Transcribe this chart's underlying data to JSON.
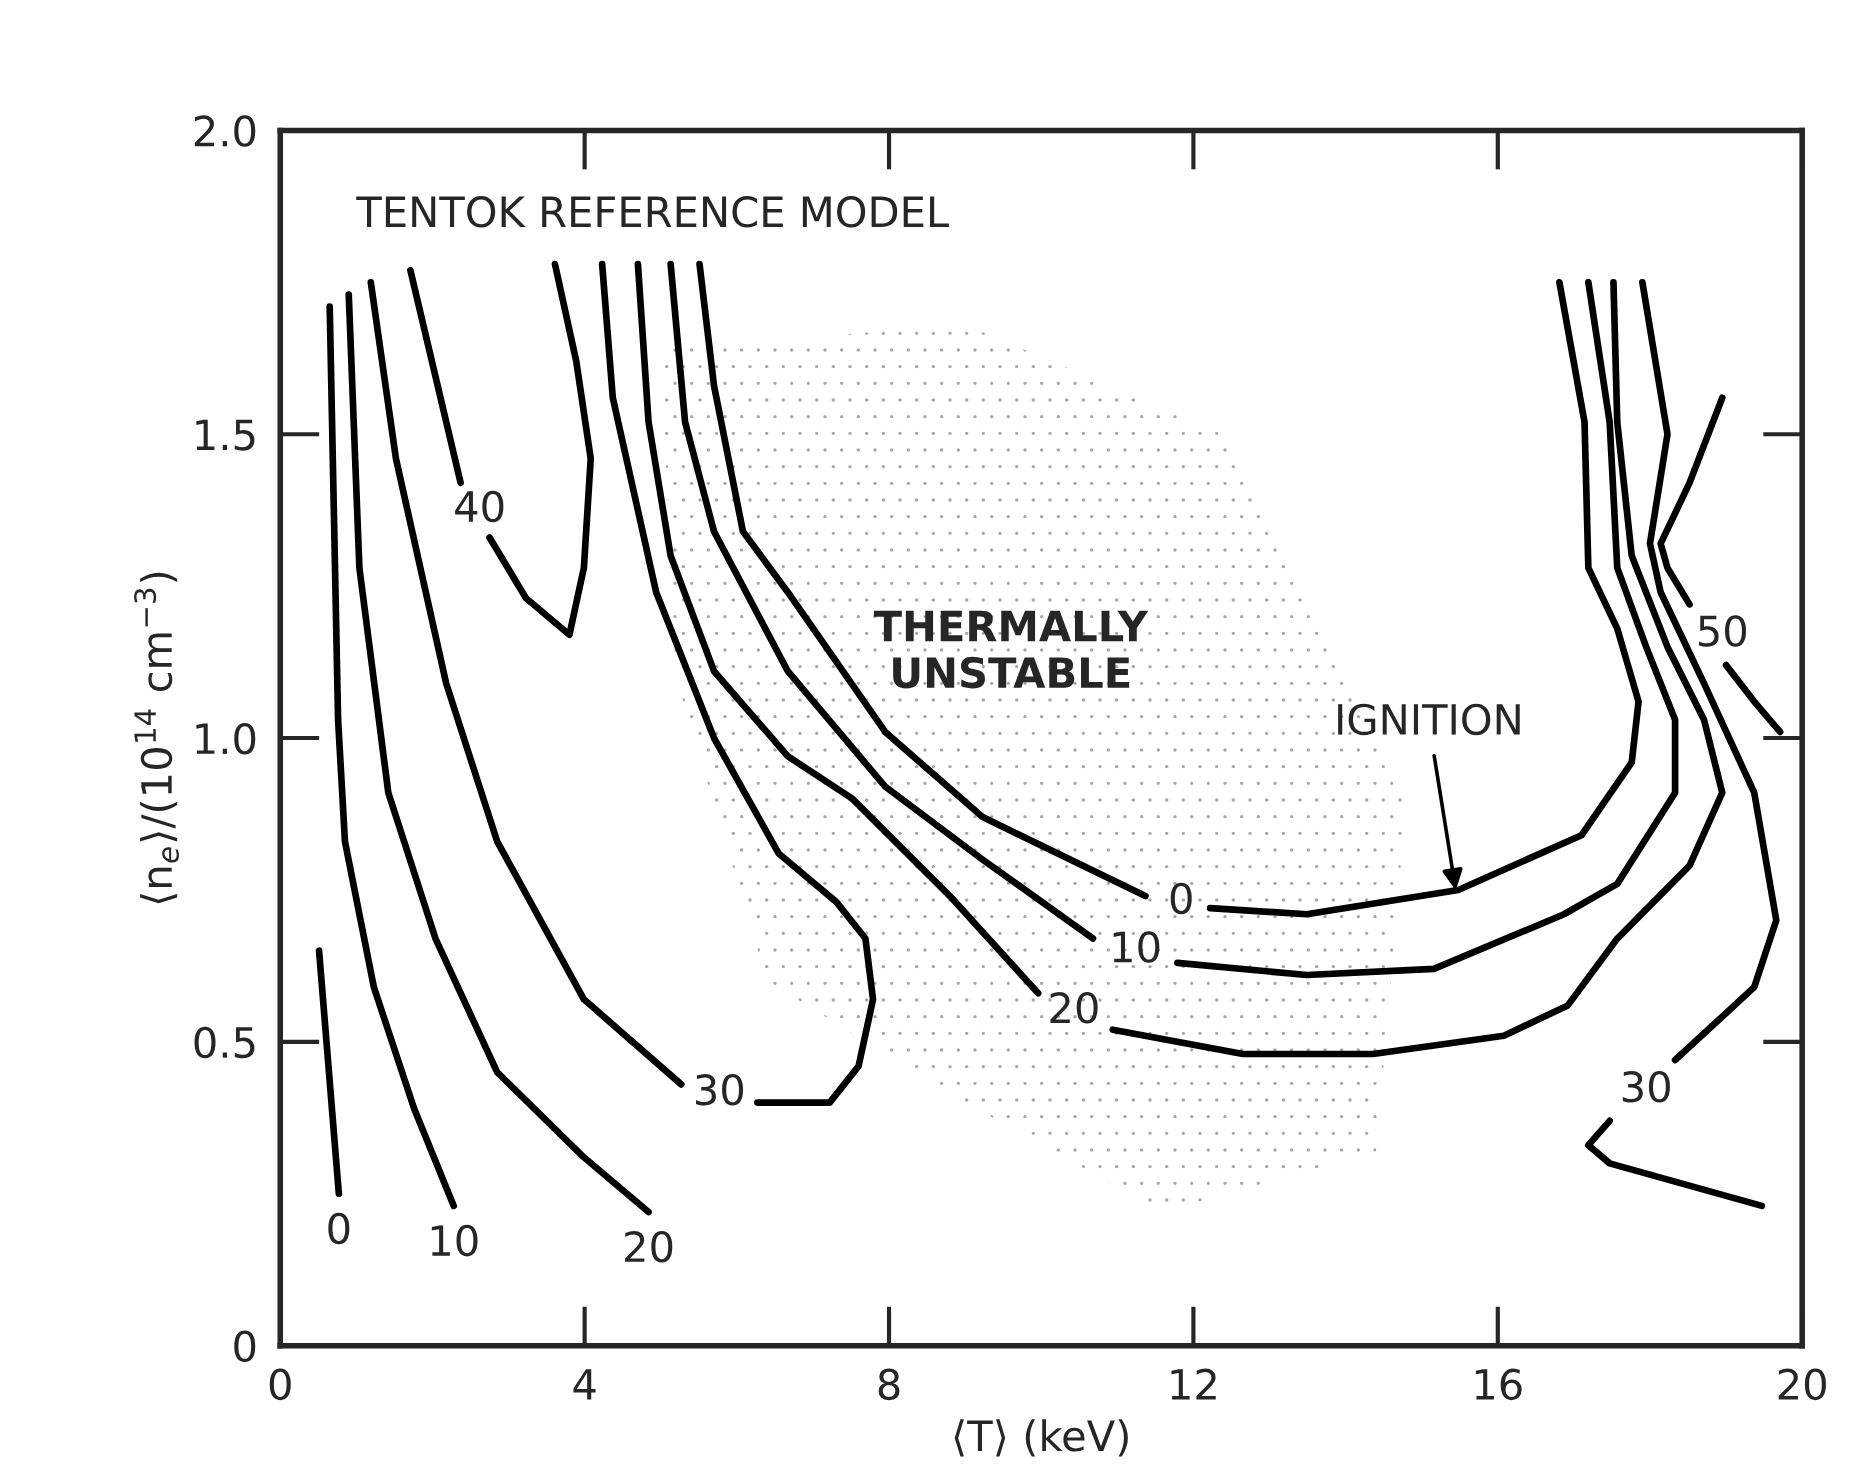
{
  "chart_data": {
    "type": "line",
    "title": "TENTOK REFERENCE MODEL",
    "xlabel": "⟨T⟩ (keV)",
    "ylabel": "⟨n$_{e}$⟩/(10$^{14}$ cm$^{−3}$)",
    "xlim": [
      0,
      20
    ],
    "ylim": [
      0,
      2.0
    ],
    "xticks": [
      0,
      4,
      8,
      12,
      16,
      20
    ],
    "yticks": [
      {
        "value": 0,
        "label": "0"
      },
      {
        "value": 0.5,
        "label": "0.5"
      },
      {
        "value": 1.0,
        "label": "1.0"
      },
      {
        "value": 1.5,
        "label": "1.5"
      },
      {
        "value": 2.0,
        "label": "2.0"
      }
    ],
    "grid": false,
    "legend": false,
    "marker": "none",
    "line_style": "solid",
    "series": [
      {
        "name": "0",
        "color": "#000000",
        "x": [
          0.51,
          0.77
        ],
        "values": [
          0.65,
          0.25
        ]
      },
      {
        "name": "10",
        "color": "#000000",
        "x": [
          0.65,
          0.76,
          0.85,
          1.23,
          1.76,
          2.28
        ],
        "values": [
          1.71,
          1.03,
          0.83,
          0.59,
          0.39,
          0.23
        ]
      },
      {
        "name": "20",
        "color": "#000000",
        "x": [
          0.9,
          1.04,
          1.42,
          2.04,
          2.85,
          3.99,
          4.84
        ],
        "values": [
          1.73,
          1.28,
          0.91,
          0.67,
          0.45,
          0.31,
          0.22
        ]
      },
      {
        "name": "30",
        "color": "#000000",
        "x": [
          1.19,
          1.52,
          2.18,
          2.85,
          3.99,
          5.27,
          5.77,
          6.27,
          7.22,
          7.6,
          7.79,
          7.69,
          7.31,
          6.55,
          5.7,
          4.94,
          4.37,
          4.23
        ],
        "values": [
          1.75,
          1.46,
          1.09,
          0.83,
          0.57,
          0.43,
          null,
          0.4,
          0.4,
          0.46,
          0.57,
          0.67,
          0.73,
          0.81,
          1.0,
          1.24,
          1.56,
          1.78
        ]
      },
      {
        "name": "40",
        "color": "#000000",
        "x": [
          1.71,
          2.37,
          2.62,
          2.75,
          3.23,
          3.8,
          3.99,
          4.08,
          3.89,
          3.61
        ],
        "values": [
          1.77,
          1.42,
          null,
          1.33,
          1.23,
          1.17,
          1.28,
          1.46,
          1.62,
          1.78
        ]
      },
      {
        "name": "0",
        "color": "#000000",
        "x": [
          5.51,
          5.7,
          6.08,
          6.67,
          7.95,
          9.23,
          11.37,
          11.84,
          12.22,
          13.49,
          15.48,
          17.1,
          17.76,
          17.85,
          17.57,
          17.19,
          17.14,
          16.81
        ],
        "values": [
          1.78,
          1.58,
          1.34,
          1.24,
          1.01,
          0.87,
          0.74,
          null,
          0.72,
          0.71,
          0.75,
          0.84,
          0.96,
          1.06,
          1.18,
          1.28,
          1.52,
          1.75
        ]
      },
      {
        "name": "10",
        "color": "#000000",
        "x": [
          5.13,
          5.32,
          5.7,
          6.67,
          7.95,
          9.23,
          10.68,
          11.24,
          11.79,
          13.49,
          15.16,
          16.87,
          17.57,
          18.33,
          18.33,
          17.95,
          17.57,
          17.47,
          17.19
        ],
        "values": [
          1.78,
          1.52,
          1.34,
          1.11,
          0.92,
          0.8,
          0.67,
          null,
          0.63,
          0.61,
          0.62,
          0.71,
          0.76,
          0.91,
          1.03,
          1.15,
          1.28,
          1.52,
          1.75
        ]
      },
      {
        "name": "20",
        "color": "#000000",
        "x": [
          4.7,
          4.84,
          5.13,
          5.7,
          6.67,
          7.52,
          8.8,
          9.96,
          10.43,
          10.94,
          12.65,
          14.36,
          16.08,
          16.92,
          17.57,
          18.52,
          18.95,
          18.71,
          18.23,
          17.76,
          17.57,
          17.52
        ],
        "values": [
          1.78,
          1.52,
          1.3,
          1.11,
          0.97,
          0.9,
          0.74,
          0.58,
          null,
          0.52,
          0.48,
          0.48,
          0.51,
          0.56,
          0.67,
          0.79,
          0.91,
          1.03,
          1.15,
          1.3,
          1.52,
          1.75
        ]
      },
      {
        "name": "30",
        "color": "#000000",
        "x": [
          17.9,
          18.23,
          18.0,
          18.14,
          18.71,
          19.37,
          19.66,
          19.37,
          18.33,
          17.95,
          17.47,
          17.19,
          17.47,
          19.47
        ],
        "values": [
          1.75,
          1.5,
          1.32,
          1.24,
          1.09,
          0.91,
          0.7,
          0.59,
          0.47,
          null,
          0.37,
          0.33,
          0.3,
          0.23
        ]
      },
      {
        "name": "50",
        "color": "#000000",
        "x": [
          18.95,
          18.52,
          18.14,
          18.23,
          18.52,
          18.95,
          19.0,
          19.37,
          19.71
        ],
        "values": [
          1.56,
          1.42,
          1.32,
          1.28,
          1.22,
          null,
          1.12,
          1.06,
          1.01
        ]
      }
    ],
    "annotations": [
      "THERMALLY\nUNSTABLE",
      {
        "text": "IGNITION",
        "x": 15.46,
        "y": 0.74
      }
    ]
  }
}
